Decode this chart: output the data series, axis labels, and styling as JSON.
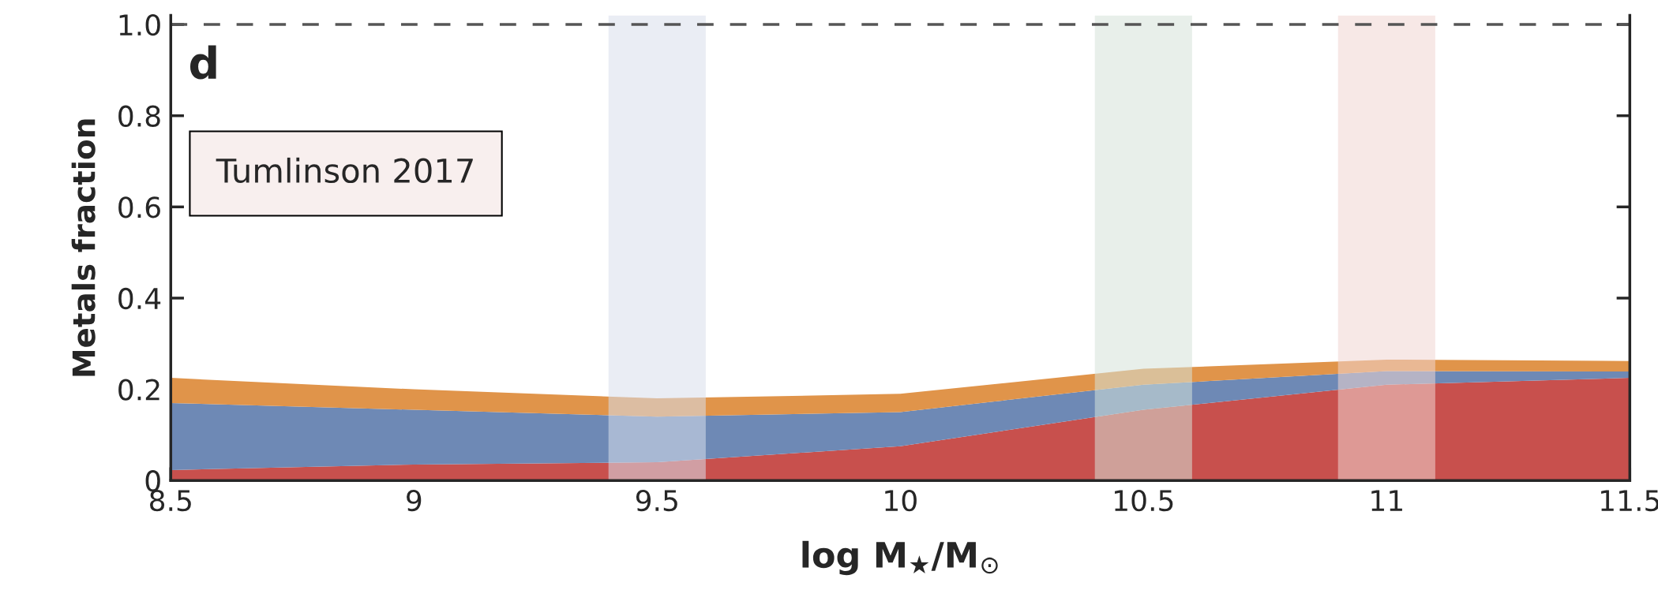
{
  "chart_data": {
    "type": "area",
    "stacked": true,
    "x": [
      8.5,
      9.0,
      9.5,
      10.0,
      10.5,
      11.0,
      11.5
    ],
    "series": [
      {
        "color": "#c8504d",
        "values": [
          0.023,
          0.035,
          0.04,
          0.075,
          0.155,
          0.21,
          0.225
        ]
      },
      {
        "color": "#6e89b5",
        "values": [
          0.147,
          0.12,
          0.1,
          0.075,
          0.055,
          0.03,
          0.014
        ]
      },
      {
        "color": "#e0944a",
        "values": [
          0.055,
          0.045,
          0.04,
          0.04,
          0.035,
          0.025,
          0.023
        ]
      }
    ],
    "xlim": [
      8.5,
      11.5
    ],
    "xticks": [
      8.5,
      9,
      9.5,
      10,
      10.5,
      11,
      11.5
    ],
    "ylim": [
      0,
      1.02
    ],
    "yticks": [
      0,
      {
        "value": 0.2,
        "label": "0.2"
      },
      {
        "value": 0.4,
        "label": "0.4"
      },
      {
        "value": 0.6,
        "label": "0.6"
      },
      {
        "value": 0.8,
        "label": "0.8"
      },
      {
        "value": 1.0,
        "label": "1.0"
      }
    ],
    "xlabel": "log M$_{★}$/M$_{⊙}$",
    "ylabel": "Metals fraction",
    "ref_lines": [
      {
        "axis": "y",
        "value": 1.0,
        "color": "#555555",
        "line_style": "dashed"
      }
    ],
    "bands": [
      {
        "axis": "x",
        "from": 9.4,
        "to": 9.6,
        "color": "#d9dfeb"
      },
      {
        "axis": "x",
        "from": 10.4,
        "to": 10.6,
        "color": "#d5e2d8"
      },
      {
        "axis": "x",
        "from": 10.9,
        "to": 11.1,
        "color": "#f0d5d2"
      }
    ],
    "annotations": [
      "d",
      "Tumlinson 2017"
    ],
    "grid": false,
    "legend": false
  }
}
